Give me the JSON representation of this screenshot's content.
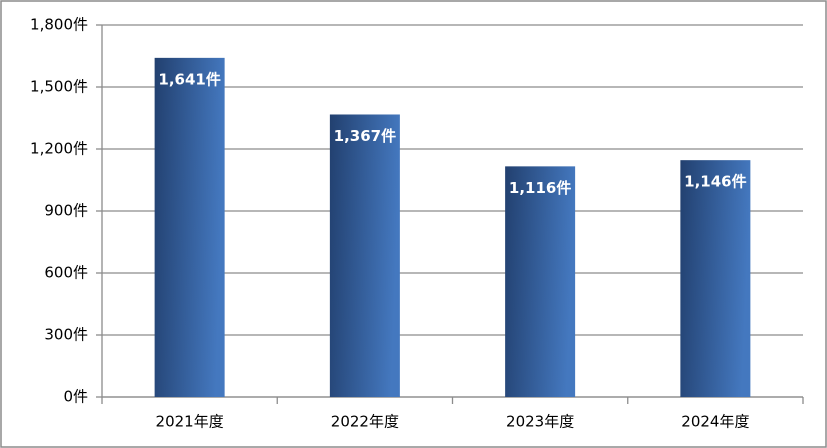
{
  "chart_data": {
    "type": "bar",
    "categories": [
      "2021年度",
      "2022年度",
      "2023年度",
      "2024年度"
    ],
    "values": [
      1641,
      1367,
      1116,
      1146
    ],
    "value_labels": [
      "1,641件",
      "1,367件",
      "1,116件",
      "1,146件"
    ],
    "color": "#4478bf",
    "ylim": [
      0,
      1800
    ],
    "yticks": [
      {
        "value": 0,
        "label": "0件"
      },
      {
        "value": 300,
        "label": "300件"
      },
      {
        "value": 600,
        "label": "600件"
      },
      {
        "value": 900,
        "label": "900件"
      },
      {
        "value": 1200,
        "label": "1,200件"
      },
      {
        "value": 1500,
        "label": "1,500件"
      },
      {
        "value": 1800,
        "label": "1,800件"
      }
    ],
    "grid": true
  }
}
